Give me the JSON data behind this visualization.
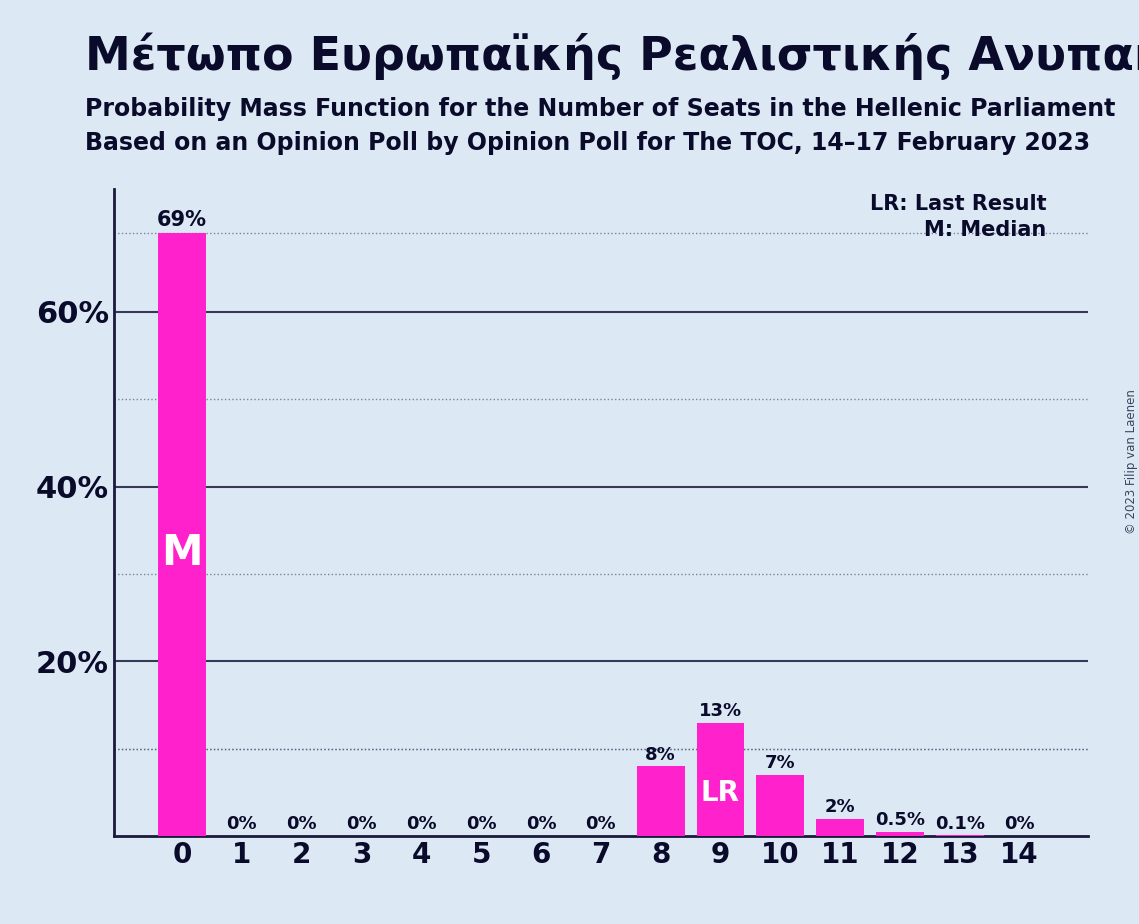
{
  "title": "Μέτωπο Ευρωπαϊκής Ρεαλιστικής Ανυπακοής",
  "subtitle1": "Probability Mass Function for the Number of Seats in the Hellenic Parliament",
  "subtitle2": "Based on an Opinion Poll by Opinion Poll for The TOC, 14–17 February 2023",
  "copyright": "© 2023 Filip van Laenen",
  "categories": [
    0,
    1,
    2,
    3,
    4,
    5,
    6,
    7,
    8,
    9,
    10,
    11,
    12,
    13,
    14
  ],
  "values": [
    69,
    0,
    0,
    0,
    0,
    0,
    0,
    0,
    8,
    13,
    7,
    2,
    0.5,
    0.1,
    0
  ],
  "bar_color": "#FF22CC",
  "background_color": "#DCE9F5",
  "text_color": "#0A0A2A",
  "bar_labels": [
    "69%",
    "0%",
    "0%",
    "0%",
    "0%",
    "0%",
    "0%",
    "0%",
    "8%",
    "13%",
    "7%",
    "2%",
    "0.5%",
    "0.1%",
    "0%"
  ],
  "median_bar": 0,
  "lr_bar": 9,
  "ylim": [
    0,
    74
  ],
  "solid_gridlines": [
    20,
    40,
    60
  ],
  "dotted_gridlines": [
    10,
    30,
    50
  ],
  "yticks": [
    20,
    40,
    60
  ],
  "ytick_labels": [
    "20%",
    "40%",
    "60%"
  ],
  "legend_lr": "LR: Last Result",
  "legend_m": "M: Median",
  "axis_color": "#1A1A3A",
  "grid_color": "#1A1A3A",
  "grid_dotted_color": "#555577"
}
